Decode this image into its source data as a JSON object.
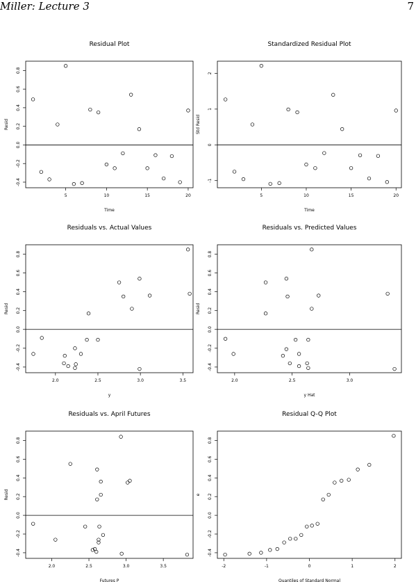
{
  "header": {
    "title": "Miller: Lecture 3",
    "page": "7"
  },
  "chart_data": [
    {
      "type": "scatter",
      "title": "Residual Plot",
      "xlabel": "Time",
      "ylabel": "Resid",
      "x": [
        1,
        2,
        3,
        4,
        5,
        6,
        7,
        8,
        9,
        10,
        11,
        12,
        13,
        14,
        15,
        16,
        17,
        18,
        19,
        20
      ],
      "values": [
        0.49,
        -0.29,
        -0.37,
        0.22,
        0.85,
        -0.42,
        -0.41,
        0.38,
        0.35,
        -0.21,
        -0.25,
        -0.09,
        0.54,
        0.17,
        -0.25,
        -0.11,
        -0.36,
        -0.12,
        -0.4,
        0.37
      ],
      "xlim": [
        0.1,
        20.6
      ],
      "ylim": [
        -0.46,
        0.9
      ],
      "xticks": [
        5,
        10,
        15,
        20
      ],
      "yticks": [
        -0.4,
        -0.2,
        {
          "value": 0,
          "label": "0.0"
        },
        0.2,
        0.4,
        0.6,
        0.8
      ],
      "hline": 0
    },
    {
      "type": "scatter",
      "title": "Standardized Residual Plot",
      "xlabel": "Time",
      "ylabel": "Std Resid",
      "x": [
        1,
        2,
        3,
        4,
        5,
        6,
        7,
        8,
        9,
        10,
        11,
        12,
        13,
        14,
        15,
        16,
        17,
        18,
        19,
        20
      ],
      "values": [
        1.27,
        -0.75,
        -0.96,
        0.57,
        2.21,
        -1.09,
        -1.07,
        0.99,
        0.91,
        -0.55,
        -0.65,
        -0.23,
        1.4,
        0.44,
        -0.65,
        -0.29,
        -0.94,
        -0.31,
        -1.04,
        0.96
      ],
      "xlim": [
        0.1,
        20.6
      ],
      "ylim": [
        -1.2,
        2.34
      ],
      "xticks": [
        5,
        10,
        15,
        20
      ],
      "yticks": [
        -1,
        0,
        1,
        2
      ],
      "hline": 0
    },
    {
      "type": "scatter",
      "title": "Residuals vs. Actual Values",
      "xlabel": "y",
      "ylabel": "Resid",
      "x": [
        1.74,
        1.84,
        2.11,
        2.1,
        2.15,
        2.23,
        2.24,
        2.23,
        2.3,
        2.37,
        2.5,
        2.39,
        2.75,
        2.8,
        2.9,
        2.99,
        2.99,
        3.11,
        3.56,
        3.58
      ],
      "values": [
        -0.26,
        -0.09,
        -0.28,
        -0.36,
        -0.39,
        -0.2,
        -0.37,
        -0.41,
        -0.26,
        -0.11,
        -0.11,
        0.17,
        0.5,
        0.35,
        0.22,
        0.54,
        -0.42,
        0.36,
        0.85,
        0.38
      ],
      "xlim": [
        1.65,
        3.62
      ],
      "ylim": [
        -0.46,
        0.9
      ],
      "xticks": [
        {
          "value": 2,
          "label": "2.0"
        },
        2.5,
        {
          "value": 3,
          "label": "3.0"
        },
        3.5
      ],
      "yticks": [
        -0.4,
        -0.2,
        {
          "value": 0,
          "label": "0.0"
        },
        0.2,
        0.4,
        0.6,
        0.8
      ],
      "hline": 0
    },
    {
      "type": "scatter",
      "title": "Residuals vs. Predicted Values",
      "xlabel": "y Hat",
      "ylabel": "Resid",
      "x": [
        1.92,
        1.99,
        2.27,
        2.27,
        2.45,
        2.46,
        2.67,
        2.67,
        2.73,
        3.33,
        3.39,
        2.42,
        2.45,
        2.48,
        2.53,
        2.56,
        2.56,
        2.63,
        2.64,
        2.64
      ],
      "values": [
        -0.1,
        -0.26,
        0.5,
        0.17,
        0.54,
        0.35,
        0.85,
        0.22,
        0.36,
        0.38,
        -0.42,
        -0.28,
        -0.21,
        -0.36,
        -0.11,
        -0.26,
        -0.39,
        -0.36,
        -0.41,
        -0.11
      ],
      "xlim": [
        1.85,
        3.45
      ],
      "ylim": [
        -0.46,
        0.9
      ],
      "xticks": [
        {
          "value": 2,
          "label": "2.0"
        },
        2.5,
        {
          "value": 3,
          "label": "3.0"
        }
      ],
      "yticks": [
        -0.4,
        -0.2,
        {
          "value": 0,
          "label": "0.0"
        },
        0.2,
        0.4,
        0.6,
        0.8
      ],
      "hline": 0
    },
    {
      "type": "scatter",
      "title": "Residuals vs. April Futures",
      "xlabel": "Futures P",
      "ylabel": "Resid",
      "x": [
        1.75,
        2.05,
        2.25,
        2.45,
        2.55,
        2.58,
        2.6,
        2.61,
        2.61,
        2.63,
        2.63,
        2.64,
        2.66,
        2.66,
        2.69,
        2.93,
        2.94,
        3.02,
        3.05,
        3.82
      ],
      "values": [
        -0.09,
        -0.26,
        0.55,
        -0.12,
        -0.37,
        -0.36,
        -0.39,
        0.49,
        0.17,
        -0.26,
        -0.29,
        -0.12,
        0.22,
        0.36,
        -0.21,
        0.84,
        -0.41,
        0.35,
        0.37,
        -0.42
      ],
      "xlim": [
        1.65,
        3.9
      ],
      "ylim": [
        -0.46,
        0.9
      ],
      "xticks": [
        {
          "value": 2,
          "label": "2.0"
        },
        2.5,
        {
          "value": 3,
          "label": "3.0"
        },
        3.5
      ],
      "yticks": [
        -0.4,
        -0.2,
        {
          "value": 0,
          "label": "0.0"
        },
        0.2,
        0.4,
        0.6,
        0.8
      ],
      "hline": 0
    },
    {
      "type": "scatter",
      "title": "Residual Q-Q Plot",
      "xlabel": "Quantiles of Standard Normal",
      "ylabel": "e",
      "x": [
        -1.97,
        -1.4,
        -1.13,
        -0.92,
        -0.75,
        -0.59,
        -0.45,
        -0.32,
        -0.19,
        -0.06,
        0.06,
        0.19,
        0.32,
        0.45,
        0.59,
        0.75,
        0.92,
        1.13,
        1.4,
        1.97
      ],
      "values": [
        -0.42,
        -0.41,
        -0.4,
        -0.37,
        -0.36,
        -0.29,
        -0.25,
        -0.25,
        -0.21,
        -0.12,
        -0.11,
        -0.09,
        0.17,
        0.22,
        0.35,
        0.37,
        0.38,
        0.49,
        0.54,
        0.85
      ],
      "xlim": [
        -2.15,
        2.15
      ],
      "ylim": [
        -0.46,
        0.9
      ],
      "xticks": [
        -2,
        -1,
        0,
        1,
        2
      ],
      "yticks": [
        -0.4,
        -0.2,
        {
          "value": 0,
          "label": "0.0"
        },
        0.2,
        0.4,
        0.6,
        0.8
      ]
    }
  ]
}
